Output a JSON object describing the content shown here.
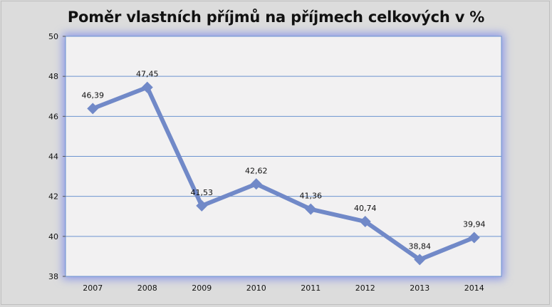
{
  "chart_data": {
    "type": "line",
    "title": "Poměr vlastních příjmů na příjmech celkových v %",
    "xlabel": "",
    "ylabel": "",
    "categories": [
      "2007",
      "2008",
      "2009",
      "2010",
      "2011",
      "2012",
      "2013",
      "2014"
    ],
    "series": [
      {
        "values": [
          46.39,
          47.45,
          41.53,
          42.62,
          41.36,
          40.74,
          38.84,
          39.94
        ],
        "labels": [
          "46,39",
          "47,45",
          "41,53",
          "42,62",
          "41,36",
          "40,74",
          "38,84",
          "39,94"
        ],
        "color": "#7189c8"
      }
    ],
    "ylim": [
      38,
      50
    ],
    "yticks": [
      "38",
      "40",
      "42",
      "44",
      "46",
      "48",
      "50"
    ],
    "grid": true,
    "legend": "none",
    "plot_background": "#f2f1f2",
    "gridline_color": "#6c94d0",
    "glow_color": "#8e9ae6"
  }
}
